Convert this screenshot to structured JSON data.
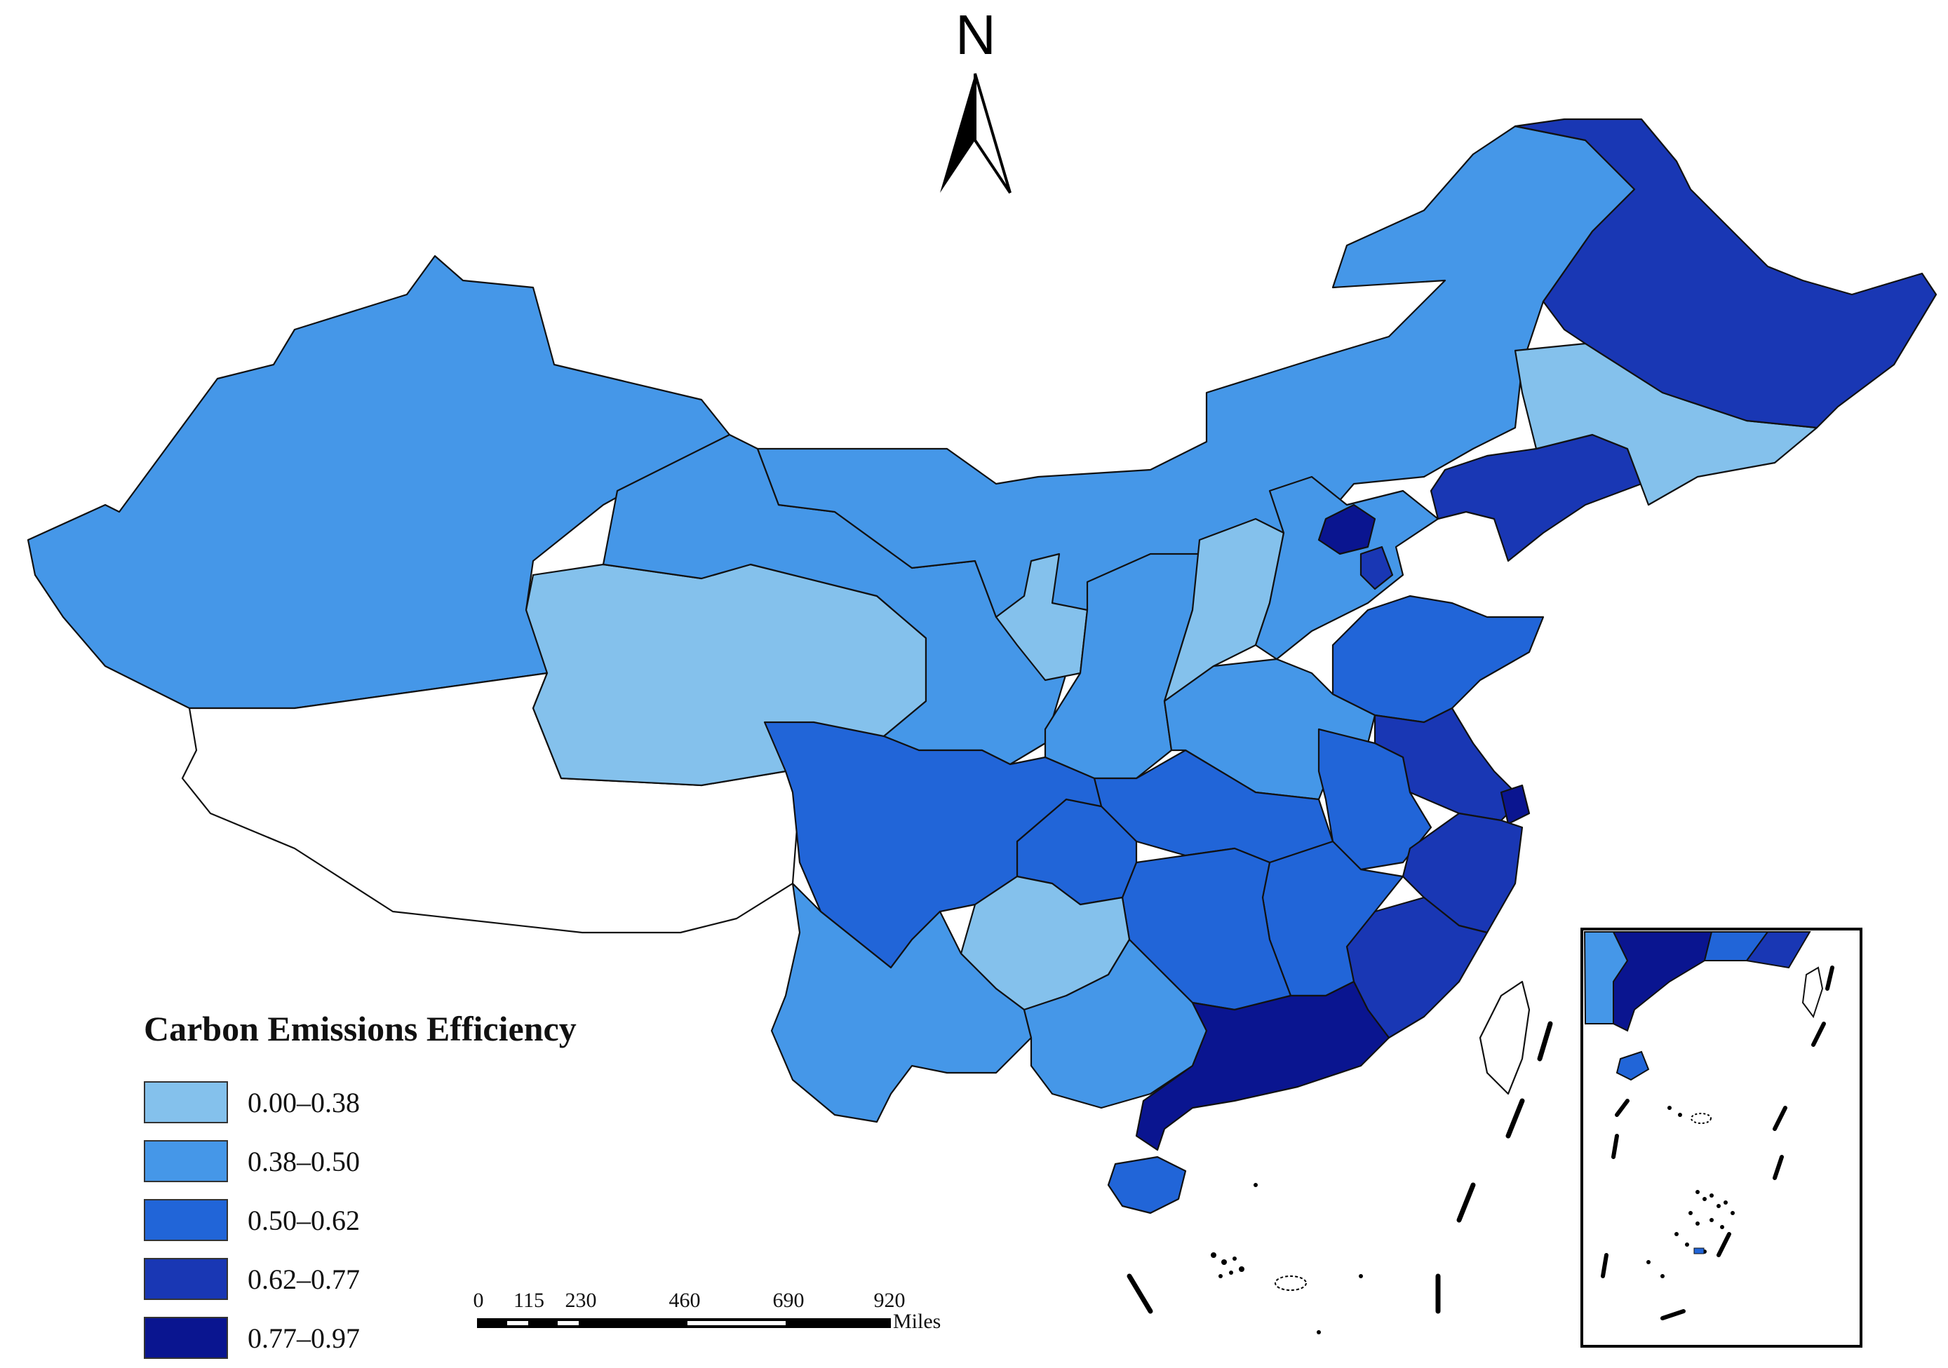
{
  "map": {
    "north_label": "N",
    "legend": {
      "title": "Carbon Emissions Efficiency",
      "classes": [
        {
          "label": "0.00–0.38",
          "color": "#84c1ec"
        },
        {
          "label": "0.38–0.50",
          "color": "#4597e8"
        },
        {
          "label": "0.50–0.62",
          "color": "#2165d8"
        },
        {
          "label": "0.62–0.77",
          "color": "#1937b4"
        },
        {
          "label": "0.77–0.97",
          "color": "#0a1590"
        }
      ]
    },
    "scale_bar": {
      "ticks": [
        "0",
        "115",
        "230",
        "460",
        "690",
        "920"
      ],
      "unit": "Miles"
    }
  }
}
